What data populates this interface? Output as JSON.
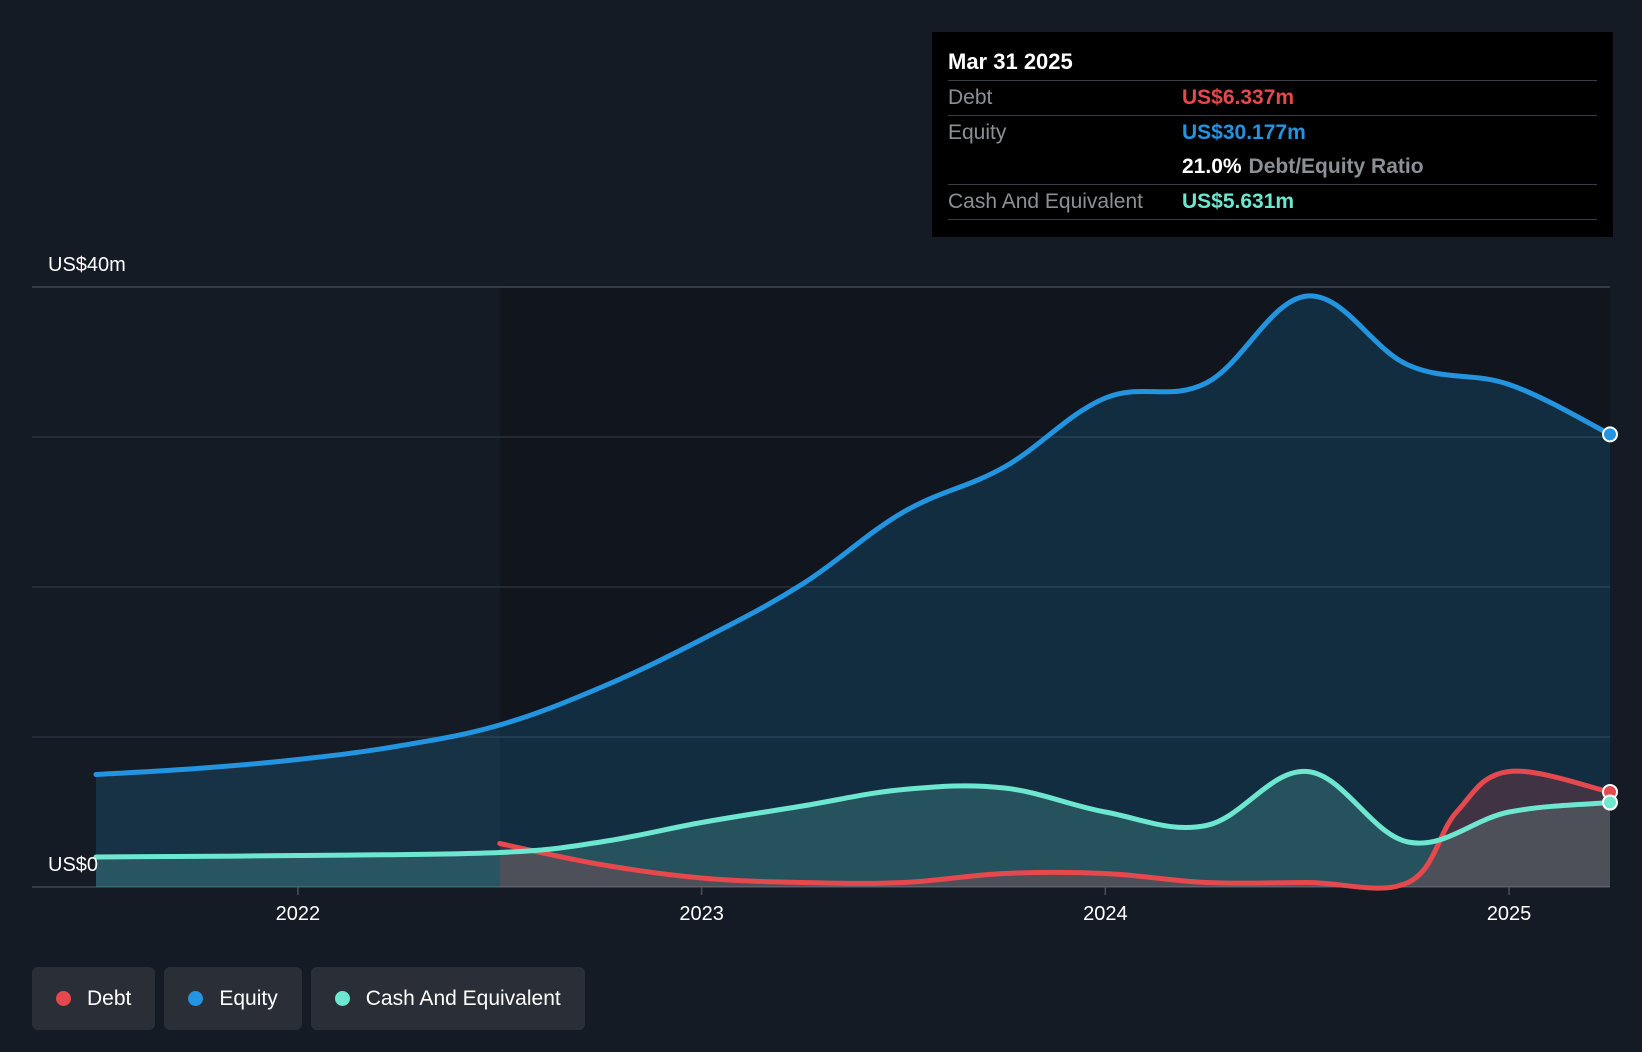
{
  "chart_data": {
    "type": "area",
    "y_axis": {
      "min": 0,
      "max": 40,
      "unit": "US$m",
      "top_label": "US$40m",
      "bottom_label": "US$0",
      "gridlines": [
        0,
        10,
        20,
        30,
        40
      ]
    },
    "x_axis": {
      "min": 2021.5,
      "max": 2025.25,
      "ticks": [
        2022,
        2023,
        2024,
        2025
      ],
      "tick_labels": [
        "2022",
        "2023",
        "2024",
        "2025"
      ]
    },
    "series": [
      {
        "name": "Equity",
        "color": "#2394e0",
        "x": [
          2021.5,
          2021.75,
          2022.0,
          2022.25,
          2022.5,
          2022.75,
          2023.0,
          2023.25,
          2023.5,
          2023.75,
          2024.0,
          2024.25,
          2024.5,
          2024.75,
          2025.0,
          2025.25
        ],
        "values": [
          7.5,
          7.9,
          8.5,
          9.4,
          10.8,
          13.3,
          16.5,
          20.2,
          25.0,
          28.0,
          32.6,
          33.6,
          39.4,
          34.8,
          33.5,
          30.177
        ]
      },
      {
        "name": "Debt",
        "color": "#e5484d",
        "x": [
          2022.5,
          2022.75,
          2023.0,
          2023.25,
          2023.5,
          2023.75,
          2024.0,
          2024.25,
          2024.5,
          2024.75,
          2024.87,
          2025.0,
          2025.25
        ],
        "values": [
          2.9,
          1.5,
          0.6,
          0.3,
          0.3,
          0.9,
          0.9,
          0.3,
          0.3,
          0.3,
          5.0,
          7.7,
          6.337
        ]
      },
      {
        "name": "Cash And Equivalent",
        "color": "#6ee7d1",
        "x": [
          2021.5,
          2022.0,
          2022.5,
          2022.75,
          2023.0,
          2023.25,
          2023.5,
          2023.75,
          2024.0,
          2024.25,
          2024.5,
          2024.75,
          2025.0,
          2025.25
        ],
        "values": [
          2.0,
          2.1,
          2.3,
          3.0,
          4.3,
          5.4,
          6.5,
          6.6,
          5.0,
          4.1,
          7.7,
          3.0,
          5.0,
          5.631
        ]
      }
    ]
  },
  "tooltip": {
    "date": "Mar 31 2025",
    "debt_label": "Debt",
    "debt_value": "US$6.337m",
    "equity_label": "Equity",
    "equity_value": "US$30.177m",
    "ratio_value": "21.0%",
    "ratio_label": "Debt/Equity Ratio",
    "cash_label": "Cash And Equivalent",
    "cash_value": "US$5.631m"
  },
  "legend": [
    {
      "label": "Debt",
      "color": "#e5484d"
    },
    {
      "label": "Equity",
      "color": "#2394e0"
    },
    {
      "label": "Cash And Equivalent",
      "color": "#6ee7d1"
    }
  ],
  "colors": {
    "background": "#151b24",
    "plot_recent": "#11161e",
    "debt": "#e5484d",
    "equity": "#2394e0",
    "cash": "#6ee7d1"
  }
}
